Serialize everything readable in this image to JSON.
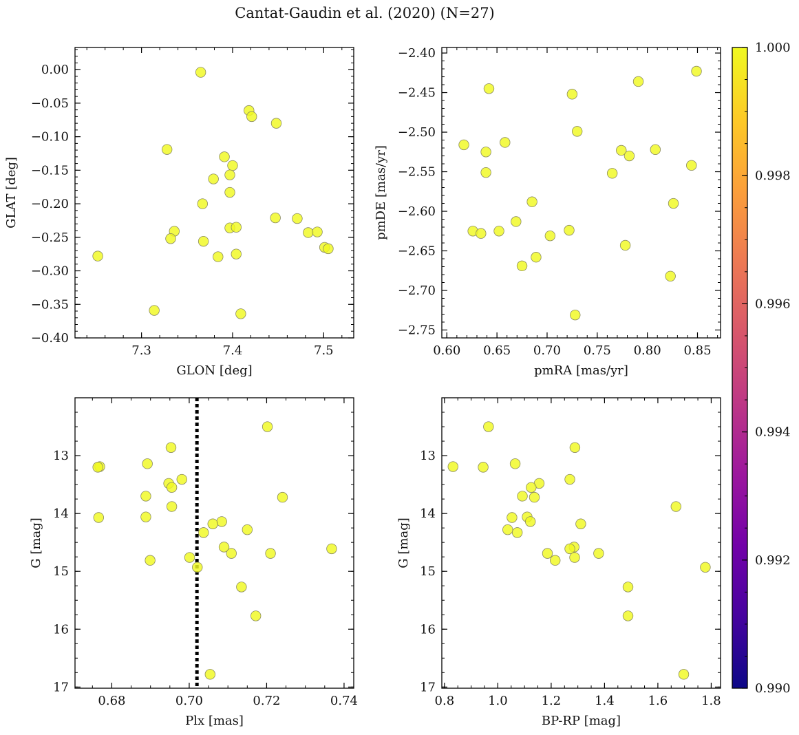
{
  "title": "Cantat-Gaudin et al. (2020) (N=27)",
  "colors": {
    "marker_fill": "#f0f921",
    "marker_edge": "#8a8a60",
    "axis": "#000000",
    "vline": "#000000",
    "colormap": [
      "#0d0887",
      "#46039f",
      "#7201a8",
      "#9c179e",
      "#bd3786",
      "#d8576b",
      "#ed7953",
      "#fb9f3a",
      "#fdca26",
      "#f0f921"
    ]
  },
  "colorbar": {
    "range": [
      0.99,
      1.0
    ],
    "tick_values": [
      0.99,
      0.992,
      0.994,
      0.996,
      0.998,
      1.0
    ],
    "tick_labels": [
      "0.990",
      "0.992",
      "0.994",
      "0.996",
      "0.998",
      "1.000"
    ]
  },
  "chart_data": [
    {
      "id": "glon-glat",
      "type": "scatter",
      "xlabel": "GLON [deg]",
      "ylabel": "GLAT [deg]",
      "xlim": [
        7.227,
        7.533
      ],
      "ylim": [
        -0.4,
        0.033
      ],
      "y_inverted": false,
      "xticks": [
        7.3,
        7.4,
        7.5
      ],
      "xtick_labels": [
        "7.3",
        "7.4",
        "7.5"
      ],
      "xminor_step": 0.02,
      "yticks": [
        0.0,
        -0.05,
        -0.1,
        -0.15,
        -0.2,
        -0.25,
        -0.3,
        -0.35,
        -0.4
      ],
      "ytick_labels": [
        "0.00",
        "−0.05",
        "−0.10",
        "−0.15",
        "−0.20",
        "−0.25",
        "−0.30",
        "−0.35",
        "−0.40"
      ],
      "yminor_step": 0.01,
      "points": [
        [
          7.365,
          -0.004
        ],
        [
          7.418,
          -0.061
        ],
        [
          7.421,
          -0.07
        ],
        [
          7.448,
          -0.08
        ],
        [
          7.328,
          -0.119
        ],
        [
          7.391,
          -0.13
        ],
        [
          7.4,
          -0.143
        ],
        [
          7.397,
          -0.157
        ],
        [
          7.379,
          -0.163
        ],
        [
          7.397,
          -0.183
        ],
        [
          7.367,
          -0.2
        ],
        [
          7.447,
          -0.221
        ],
        [
          7.471,
          -0.222
        ],
        [
          7.397,
          -0.236
        ],
        [
          7.404,
          -0.235
        ],
        [
          7.336,
          -0.241
        ],
        [
          7.483,
          -0.243
        ],
        [
          7.493,
          -0.242
        ],
        [
          7.332,
          -0.252
        ],
        [
          7.368,
          -0.256
        ],
        [
          7.501,
          -0.265
        ],
        [
          7.505,
          -0.267
        ],
        [
          7.404,
          -0.275
        ],
        [
          7.384,
          -0.279
        ],
        [
          7.252,
          -0.278
        ],
        [
          7.314,
          -0.359
        ],
        [
          7.409,
          -0.364
        ]
      ]
    },
    {
      "id": "pmra-pmde",
      "type": "scatter",
      "xlabel": "pmRA [mas/yr]",
      "ylabel": "pmDE [mas/yr]",
      "xlim": [
        0.595,
        0.873
      ],
      "ylim": [
        -2.76,
        -2.393
      ],
      "y_inverted": false,
      "xticks": [
        0.6,
        0.65,
        0.7,
        0.75,
        0.8,
        0.85
      ],
      "xtick_labels": [
        "0.60",
        "0.65",
        "0.70",
        "0.75",
        "0.80",
        "0.85"
      ],
      "xminor_step": 0.01,
      "yticks": [
        -2.4,
        -2.45,
        -2.5,
        -2.55,
        -2.6,
        -2.65,
        -2.7,
        -2.75
      ],
      "ytick_labels": [
        "−2.40",
        "−2.45",
        "−2.50",
        "−2.55",
        "−2.60",
        "−2.65",
        "−2.70",
        "−2.75"
      ],
      "yminor_step": 0.01,
      "points": [
        [
          0.849,
          -2.423
        ],
        [
          0.642,
          -2.445
        ],
        [
          0.791,
          -2.436
        ],
        [
          0.725,
          -2.452
        ],
        [
          0.73,
          -2.499
        ],
        [
          0.617,
          -2.516
        ],
        [
          0.639,
          -2.525
        ],
        [
          0.658,
          -2.513
        ],
        [
          0.774,
          -2.523
        ],
        [
          0.808,
          -2.522
        ],
        [
          0.782,
          -2.53
        ],
        [
          0.639,
          -2.551
        ],
        [
          0.765,
          -2.552
        ],
        [
          0.844,
          -2.542
        ],
        [
          0.685,
          -2.588
        ],
        [
          0.826,
          -2.59
        ],
        [
          0.669,
          -2.613
        ],
        [
          0.626,
          -2.625
        ],
        [
          0.634,
          -2.628
        ],
        [
          0.652,
          -2.625
        ],
        [
          0.722,
          -2.624
        ],
        [
          0.703,
          -2.631
        ],
        [
          0.778,
          -2.643
        ],
        [
          0.689,
          -2.658
        ],
        [
          0.675,
          -2.669
        ],
        [
          0.823,
          -2.682
        ],
        [
          0.728,
          -2.731
        ]
      ]
    },
    {
      "id": "plx-g",
      "type": "scatter",
      "xlabel": "Plx [mas]",
      "ylabel": "G [mag]",
      "xlim": [
        0.6705,
        0.7425
      ],
      "ylim": [
        17.02,
        12.0
      ],
      "y_inverted": true,
      "xticks": [
        0.68,
        0.7,
        0.72,
        0.74
      ],
      "xtick_labels": [
        "0.68",
        "0.70",
        "0.72",
        "0.74"
      ],
      "xminor_step": 0.005,
      "yticks": [
        13,
        14,
        15,
        16,
        17
      ],
      "ytick_labels": [
        "13",
        "14",
        "15",
        "16",
        "17"
      ],
      "yminor_step": 0.25,
      "vline_x": 0.702,
      "points": [
        [
          0.7202,
          12.5
        ],
        [
          0.6953,
          12.86
        ],
        [
          0.6769,
          13.19
        ],
        [
          0.6764,
          13.2
        ],
        [
          0.6892,
          13.14
        ],
        [
          0.6981,
          13.41
        ],
        [
          0.6947,
          13.48
        ],
        [
          0.6955,
          13.55
        ],
        [
          0.6888,
          13.7
        ],
        [
          0.7241,
          13.72
        ],
        [
          0.6955,
          13.88
        ],
        [
          0.6888,
          14.06
        ],
        [
          0.6766,
          14.07
        ],
        [
          0.7084,
          14.14
        ],
        [
          0.7061,
          14.18
        ],
        [
          0.7037,
          14.33
        ],
        [
          0.715,
          14.28
        ],
        [
          0.7368,
          14.61
        ],
        [
          0.709,
          14.58
        ],
        [
          0.7109,
          14.69
        ],
        [
          0.721,
          14.69
        ],
        [
          0.6899,
          14.81
        ],
        [
          0.7001,
          14.76
        ],
        [
          0.7021,
          14.93
        ],
        [
          0.7135,
          15.27
        ],
        [
          0.7172,
          15.77
        ],
        [
          0.7054,
          16.78
        ]
      ]
    },
    {
      "id": "bprp-g",
      "type": "scatter",
      "xlabel": "BP-RP [mag]",
      "ylabel": "G [mag]",
      "xlim": [
        0.79,
        1.835
      ],
      "ylim": [
        17.02,
        12.0
      ],
      "y_inverted": true,
      "xticks": [
        0.8,
        1.0,
        1.2,
        1.4,
        1.6,
        1.8
      ],
      "xtick_labels": [
        "0.8",
        "1.0",
        "1.2",
        "1.4",
        "1.6",
        "1.8"
      ],
      "xminor_step": 0.05,
      "yticks": [
        13,
        14,
        15,
        16,
        17
      ],
      "ytick_labels": [
        "13",
        "14",
        "15",
        "16",
        "17"
      ],
      "yminor_step": 0.25,
      "points": [
        [
          0.965,
          12.5
        ],
        [
          1.289,
          12.86
        ],
        [
          0.832,
          13.19
        ],
        [
          0.945,
          13.2
        ],
        [
          1.065,
          13.14
        ],
        [
          1.27,
          13.41
        ],
        [
          1.155,
          13.48
        ],
        [
          1.125,
          13.55
        ],
        [
          1.092,
          13.7
        ],
        [
          1.137,
          13.72
        ],
        [
          1.668,
          13.88
        ],
        [
          1.11,
          14.06
        ],
        [
          1.053,
          14.07
        ],
        [
          1.122,
          14.14
        ],
        [
          1.311,
          14.18
        ],
        [
          1.073,
          14.33
        ],
        [
          1.037,
          14.28
        ],
        [
          1.286,
          14.58
        ],
        [
          1.27,
          14.61
        ],
        [
          1.186,
          14.69
        ],
        [
          1.378,
          14.69
        ],
        [
          1.215,
          14.81
        ],
        [
          1.288,
          14.76
        ],
        [
          1.778,
          14.93
        ],
        [
          1.488,
          15.27
        ],
        [
          1.488,
          15.77
        ],
        [
          1.697,
          16.78
        ]
      ]
    }
  ]
}
